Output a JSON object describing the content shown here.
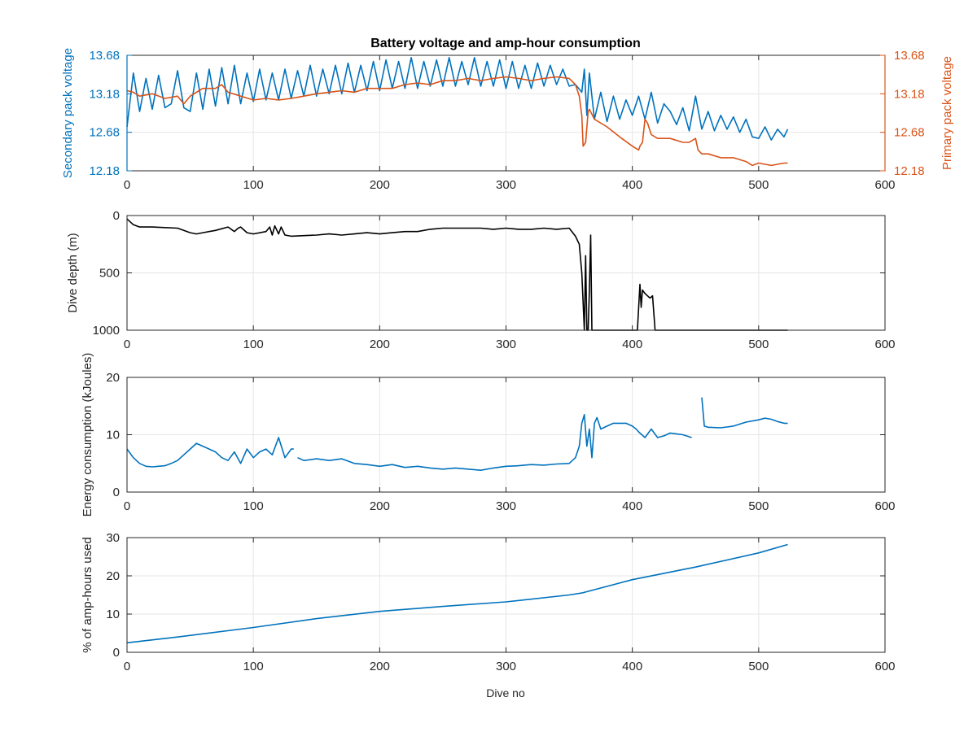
{
  "figure": {
    "title": "Battery voltage and amp-hour consumption",
    "xlabel": "Dive no"
  },
  "colors": {
    "blue": "#0072bd",
    "orange": "#d95319",
    "black": "#000000",
    "grid": "#e6e6e6",
    "axis": "#262626"
  },
  "chart_data": [
    {
      "type": "line",
      "title": "Battery voltage and amp-hour consumption",
      "xlabel": "",
      "ylabel_left": "Secondary pack voltage",
      "ylabel_right": "Primary pack voltage",
      "xlim": [
        0,
        600
      ],
      "ylim": [
        12.18,
        13.68
      ],
      "xticks": [
        0,
        100,
        200,
        300,
        400,
        500,
        600
      ],
      "yticks": [
        12.18,
        12.68,
        13.18,
        13.68
      ],
      "ytick_labels": [
        "12.18",
        "12.68",
        "13.18",
        "13.68"
      ],
      "grid": true,
      "series": [
        {
          "axis": "left",
          "color": "#0072bd",
          "x": [
            0,
            5,
            10,
            15,
            20,
            25,
            30,
            35,
            40,
            45,
            50,
            55,
            60,
            65,
            70,
            75,
            80,
            85,
            90,
            95,
            100,
            105,
            110,
            115,
            120,
            125,
            130,
            135,
            140,
            145,
            150,
            155,
            160,
            165,
            170,
            175,
            180,
            185,
            190,
            195,
            200,
            205,
            210,
            215,
            220,
            225,
            230,
            235,
            240,
            245,
            250,
            255,
            260,
            265,
            270,
            275,
            280,
            285,
            290,
            295,
            300,
            305,
            310,
            315,
            320,
            325,
            330,
            335,
            340,
            345,
            350,
            355,
            360,
            362,
            364,
            366,
            370,
            375,
            380,
            385,
            390,
            395,
            400,
            405,
            410,
            415,
            420,
            425,
            430,
            435,
            440,
            445,
            450,
            455,
            460,
            465,
            470,
            475,
            480,
            485,
            490,
            495,
            500,
            505,
            510,
            515,
            520,
            523
          ],
          "y": [
            12.75,
            13.45,
            12.95,
            13.38,
            12.98,
            13.42,
            13.0,
            13.05,
            13.48,
            13.0,
            12.95,
            13.45,
            12.98,
            13.5,
            13.02,
            13.52,
            13.05,
            13.55,
            13.05,
            13.45,
            13.08,
            13.5,
            13.1,
            13.45,
            13.1,
            13.5,
            13.12,
            13.48,
            13.15,
            13.55,
            13.15,
            13.5,
            13.18,
            13.55,
            13.18,
            13.58,
            13.2,
            13.55,
            13.22,
            13.6,
            13.22,
            13.62,
            13.25,
            13.6,
            13.25,
            13.65,
            13.25,
            13.6,
            13.28,
            13.62,
            13.28,
            13.65,
            13.28,
            13.6,
            13.3,
            13.65,
            13.28,
            13.6,
            13.28,
            13.62,
            13.25,
            13.6,
            13.25,
            13.55,
            13.25,
            13.58,
            13.28,
            13.55,
            13.3,
            13.5,
            13.28,
            13.3,
            13.2,
            13.5,
            12.9,
            13.45,
            12.85,
            13.2,
            12.82,
            13.15,
            12.85,
            13.1,
            12.9,
            13.15,
            12.85,
            13.2,
            12.8,
            13.05,
            12.95,
            12.78,
            13.0,
            12.7,
            13.15,
            12.72,
            12.95,
            12.7,
            12.9,
            12.72,
            12.88,
            12.68,
            12.85,
            12.62,
            12.6,
            12.75,
            12.58,
            12.72,
            12.62,
            12.72
          ]
        },
        {
          "axis": "right",
          "color": "#d95319",
          "x": [
            0,
            5,
            10,
            20,
            30,
            40,
            45,
            50,
            55,
            60,
            70,
            75,
            80,
            90,
            100,
            110,
            120,
            130,
            140,
            150,
            160,
            170,
            180,
            190,
            200,
            210,
            220,
            230,
            240,
            250,
            260,
            270,
            280,
            290,
            300,
            310,
            320,
            330,
            340,
            350,
            355,
            358,
            360,
            361,
            363,
            365,
            366,
            370,
            380,
            390,
            400,
            405,
            406,
            408,
            410,
            412,
            415,
            420,
            430,
            440,
            445,
            450,
            452,
            455,
            460,
            470,
            480,
            490,
            495,
            500,
            510,
            520,
            523
          ],
          "y": [
            13.22,
            13.2,
            13.15,
            13.18,
            13.12,
            13.15,
            13.05,
            13.15,
            13.2,
            13.25,
            13.25,
            13.3,
            13.2,
            13.15,
            13.1,
            13.12,
            13.1,
            13.12,
            13.15,
            13.18,
            13.2,
            13.22,
            13.2,
            13.25,
            13.25,
            13.25,
            13.3,
            13.32,
            13.3,
            13.35,
            13.35,
            13.38,
            13.35,
            13.38,
            13.4,
            13.38,
            13.35,
            13.38,
            13.4,
            13.38,
            13.3,
            13.15,
            12.9,
            12.5,
            12.55,
            12.95,
            12.98,
            12.85,
            12.75,
            12.62,
            12.5,
            12.45,
            12.5,
            12.55,
            12.85,
            12.8,
            12.65,
            12.6,
            12.6,
            12.55,
            12.55,
            12.6,
            12.45,
            12.4,
            12.4,
            12.35,
            12.35,
            12.3,
            12.25,
            12.28,
            12.25,
            12.28,
            12.28
          ]
        }
      ]
    },
    {
      "type": "line",
      "xlabel": "",
      "ylabel": "Dive depth (m)",
      "xlim": [
        0,
        600
      ],
      "ylim": [
        0,
        1000
      ],
      "y_reversed": true,
      "xticks": [
        0,
        100,
        200,
        300,
        400,
        500,
        600
      ],
      "yticks": [
        0,
        500,
        1000
      ],
      "ytick_labels": [
        "0",
        "500",
        "1000"
      ],
      "grid": true,
      "series": [
        {
          "color": "#000000",
          "x": [
            0,
            5,
            10,
            20,
            30,
            40,
            50,
            55,
            60,
            70,
            80,
            85,
            88,
            90,
            95,
            100,
            110,
            113,
            115,
            117,
            120,
            122,
            125,
            130,
            140,
            150,
            160,
            170,
            180,
            190,
            200,
            210,
            220,
            230,
            240,
            250,
            260,
            270,
            280,
            290,
            300,
            310,
            320,
            330,
            340,
            350,
            355,
            358,
            360,
            362,
            363,
            364,
            365,
            366,
            367,
            368,
            370,
            380,
            390,
            400,
            404,
            406,
            407,
            408,
            410,
            412,
            414,
            416,
            418,
            420,
            430,
            440,
            450,
            460,
            470,
            480,
            490,
            500,
            510,
            520,
            523
          ],
          "y": [
            30,
            80,
            100,
            100,
            105,
            110,
            150,
            160,
            150,
            130,
            100,
            140,
            110,
            100,
            150,
            160,
            140,
            100,
            170,
            90,
            160,
            100,
            170,
            180,
            175,
            170,
            160,
            170,
            160,
            150,
            160,
            150,
            140,
            140,
            120,
            110,
            110,
            110,
            110,
            120,
            110,
            120,
            120,
            110,
            120,
            110,
            180,
            250,
            500,
            1000,
            350,
            1000,
            1000,
            650,
            170,
            1000,
            1000,
            1000,
            1000,
            1000,
            1000,
            600,
            800,
            650,
            680,
            700,
            720,
            700,
            1000,
            1000,
            1000,
            1000,
            1000,
            1000,
            1000,
            1000,
            1000,
            1000,
            1000,
            1000,
            1000
          ]
        }
      ]
    },
    {
      "type": "line",
      "xlabel": "",
      "ylabel": "Energy consumption (kJoules)",
      "xlim": [
        0,
        600
      ],
      "ylim": [
        0,
        20
      ],
      "xticks": [
        0,
        100,
        200,
        300,
        400,
        500,
        600
      ],
      "yticks": [
        0,
        10,
        20
      ],
      "ytick_labels": [
        "0",
        "10",
        "20"
      ],
      "grid": true,
      "series": [
        {
          "color": "#0072bd",
          "segments": [
            {
              "x": [
                0,
                5,
                10,
                15,
                20,
                25,
                30,
                35,
                40,
                45,
                50,
                55,
                60,
                65,
                70,
                75,
                80,
                85,
                90,
                95,
                100,
                105,
                110,
                115,
                120,
                125,
                130,
                132
              ],
              "y": [
                7.5,
                6.0,
                5.0,
                4.5,
                4.4,
                4.5,
                4.6,
                5.0,
                5.5,
                6.5,
                7.5,
                8.5,
                8.0,
                7.5,
                7.0,
                6.0,
                5.5,
                7.0,
                5.0,
                7.5,
                6.0,
                7.0,
                7.5,
                6.5,
                9.5,
                6.0,
                7.5,
                7.5
              ]
            },
            {
              "x": [
                135,
                140,
                150,
                160,
                170,
                180,
                190,
                200,
                210,
                220,
                230,
                240,
                250,
                260,
                270,
                280,
                290,
                300,
                310,
                320,
                330,
                340,
                350,
                355,
                358,
                360,
                362,
                364,
                366,
                368,
                370,
                372,
                375,
                380,
                385,
                390,
                395,
                400,
                403,
                405,
                410,
                415,
                420,
                425,
                430,
                440,
                447
              ],
              "y": [
                6.0,
                5.5,
                5.8,
                5.5,
                5.8,
                5.0,
                4.8,
                4.5,
                4.8,
                4.3,
                4.5,
                4.2,
                4.0,
                4.2,
                4.0,
                3.8,
                4.2,
                4.5,
                4.6,
                4.8,
                4.7,
                4.9,
                5.0,
                6.0,
                8.0,
                12.0,
                13.5,
                8.0,
                11.0,
                6.0,
                12.0,
                13.0,
                11.0,
                11.5,
                12.0,
                12.0,
                12.0,
                11.5,
                11.0,
                10.5,
                9.5,
                11.0,
                9.5,
                9.8,
                10.3,
                10.0,
                9.5
              ]
            },
            {
              "x": [
                455,
                457,
                460,
                470,
                480,
                490,
                500,
                505,
                510,
                515,
                520,
                523
              ],
              "y": [
                16.5,
                11.5,
                11.3,
                11.2,
                11.5,
                12.2,
                12.6,
                12.9,
                12.7,
                12.3,
                12.0,
                12.0
              ]
            }
          ]
        }
      ]
    },
    {
      "type": "line",
      "xlabel": "Dive no",
      "ylabel": "% of amp-hours used",
      "xlim": [
        0,
        600
      ],
      "ylim": [
        0,
        30
      ],
      "xticks": [
        0,
        100,
        200,
        300,
        400,
        500,
        600
      ],
      "yticks": [
        0,
        10,
        20,
        30
      ],
      "ytick_labels": [
        "0",
        "10",
        "20",
        "30"
      ],
      "grid": true,
      "series": [
        {
          "color": "#0072bd",
          "x": [
            0,
            40,
            100,
            150,
            200,
            250,
            300,
            350,
            360,
            400,
            450,
            500,
            523
          ],
          "y": [
            2.5,
            4.0,
            6.5,
            8.8,
            10.7,
            12.0,
            13.2,
            15.0,
            15.5,
            19.0,
            22.3,
            26.0,
            28.2
          ]
        }
      ]
    }
  ]
}
